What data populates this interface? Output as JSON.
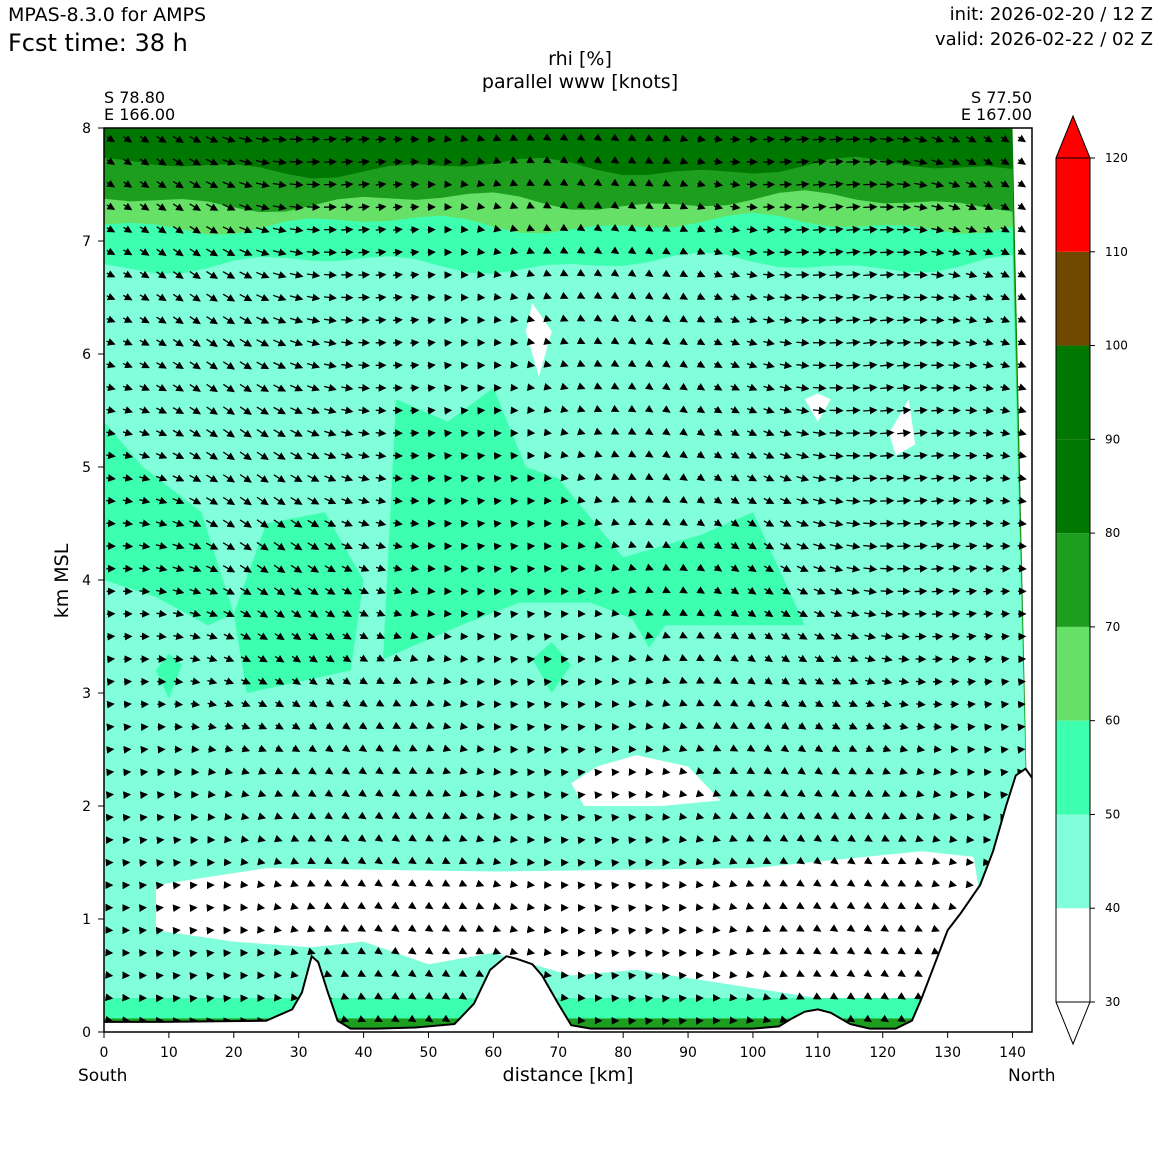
{
  "header": {
    "model": "MPAS-8.3.0 for AMPS",
    "fcst_time": "Fcst time:   38 h",
    "init": "init: 2026-02-20 / 12 Z",
    "valid": "valid: 2026-02-22 / 02 Z"
  },
  "chart_data": {
    "type": "cross-section contour with vector field",
    "title": "rhi [%]",
    "subtitle": "parallel www [knots]",
    "xlabel": "distance [km]",
    "ylabel": "km MSL",
    "xlim": [
      0,
      143
    ],
    "ylim": [
      0,
      8
    ],
    "x_ticks": [
      0,
      10,
      20,
      30,
      40,
      50,
      60,
      70,
      80,
      90,
      100,
      110,
      120,
      130,
      140
    ],
    "y_ticks": [
      0,
      1,
      2,
      3,
      4,
      5,
      6,
      7,
      8
    ],
    "start_point": {
      "lat": "S 78.80",
      "lon": "E 166.00",
      "label": "South"
    },
    "end_point": {
      "lat": "S 77.50",
      "lon": "E 167.00",
      "label": "North"
    },
    "colorbar": {
      "levels": [
        30,
        40,
        50,
        60,
        70,
        80,
        90,
        100,
        110,
        120
      ],
      "colors": [
        "#ffffff",
        "#80ffda",
        "#3cffb0",
        "#66e066",
        "#1e9e1e",
        "#007700",
        "#007700",
        "#704800",
        "#ff0000"
      ],
      "extend": "both",
      "over_color": "#ff0000",
      "under_color": "#ffffff"
    },
    "terrain": {
      "x_km": [
        0,
        9,
        25,
        29,
        30.5,
        32,
        33,
        34.5,
        36,
        38,
        42,
        48,
        54,
        57,
        59.5,
        62,
        63.5,
        65,
        66,
        67.5,
        70,
        72,
        75,
        80,
        90,
        100,
        104,
        106,
        108,
        110,
        112,
        115,
        118,
        122,
        124.5,
        126,
        128,
        130,
        132,
        135,
        137,
        139,
        140.5,
        142,
        143
      ],
      "height_km": [
        0.09,
        0.09,
        0.1,
        0.2,
        0.35,
        0.67,
        0.62,
        0.35,
        0.1,
        0.03,
        0.03,
        0.04,
        0.07,
        0.25,
        0.55,
        0.67,
        0.65,
        0.62,
        0.6,
        0.5,
        0.25,
        0.06,
        0.03,
        0.03,
        0.03,
        0.03,
        0.05,
        0.12,
        0.18,
        0.2,
        0.17,
        0.07,
        0.03,
        0.03,
        0.1,
        0.3,
        0.6,
        0.9,
        1.05,
        1.3,
        1.6,
        2.0,
        2.27,
        2.33,
        2.25
      ]
    },
    "rhi_band_tops_km": {
      "white_below_40": 1.45,
      "40_to_50": 6.8,
      "50_to_60": 7.15,
      "60_to_70": 7.35,
      "70_to_80": 7.65,
      "80_plus": 8.0
    },
    "wind_vector_grid": {
      "dx_km": 2.6,
      "dz_km": 0.2
    }
  }
}
